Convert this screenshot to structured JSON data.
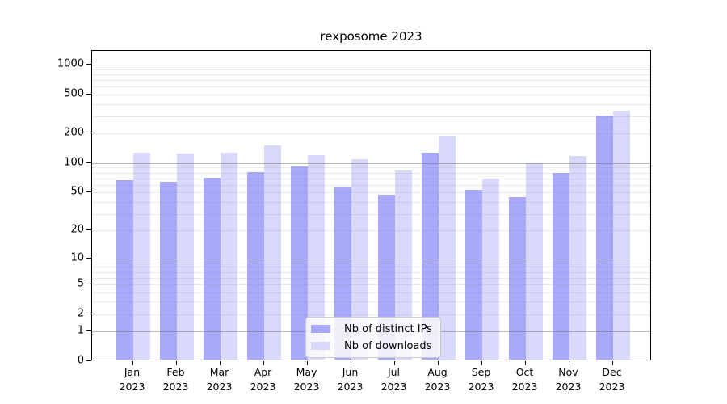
{
  "chart_data": {
    "type": "bar",
    "title": "rexposome 2023",
    "categories": [
      "Jan 2023",
      "Feb 2023",
      "Mar 2023",
      "Apr 2023",
      "May 2023",
      "Jun 2023",
      "Jul 2023",
      "Aug 2023",
      "Sep 2023",
      "Oct 2023",
      "Nov 2023",
      "Dec 2023"
    ],
    "x_tick_months": [
      "Jan",
      "Feb",
      "Mar",
      "Apr",
      "May",
      "Jun",
      "Jul",
      "Aug",
      "Sep",
      "Oct",
      "Nov",
      "Dec"
    ],
    "x_tick_year": "2023",
    "series": [
      {
        "name": "Nb of distinct IPs",
        "color": "#a9a9fa",
        "values": [
          64,
          62,
          68,
          78,
          89,
          54,
          46,
          124,
          51,
          43,
          77,
          293
        ]
      },
      {
        "name": "Nb of downloads",
        "color": "#d8d8fa",
        "values": [
          122,
          120,
          122,
          147,
          116,
          106,
          81,
          183,
          67,
          97,
          113,
          332
        ]
      }
    ],
    "y_ticks": [
      0,
      1,
      2,
      5,
      10,
      20,
      50,
      100,
      200,
      500,
      1000
    ],
    "y_scale": "log10(value+1)",
    "ylim": [
      0,
      1380
    ],
    "grid": {
      "horizontal_major": true,
      "horizontal_minor": true,
      "vertical": false
    },
    "legend": {
      "position": "lower-center",
      "entries": [
        "Nb of distinct IPs",
        "Nb of downloads"
      ]
    }
  }
}
